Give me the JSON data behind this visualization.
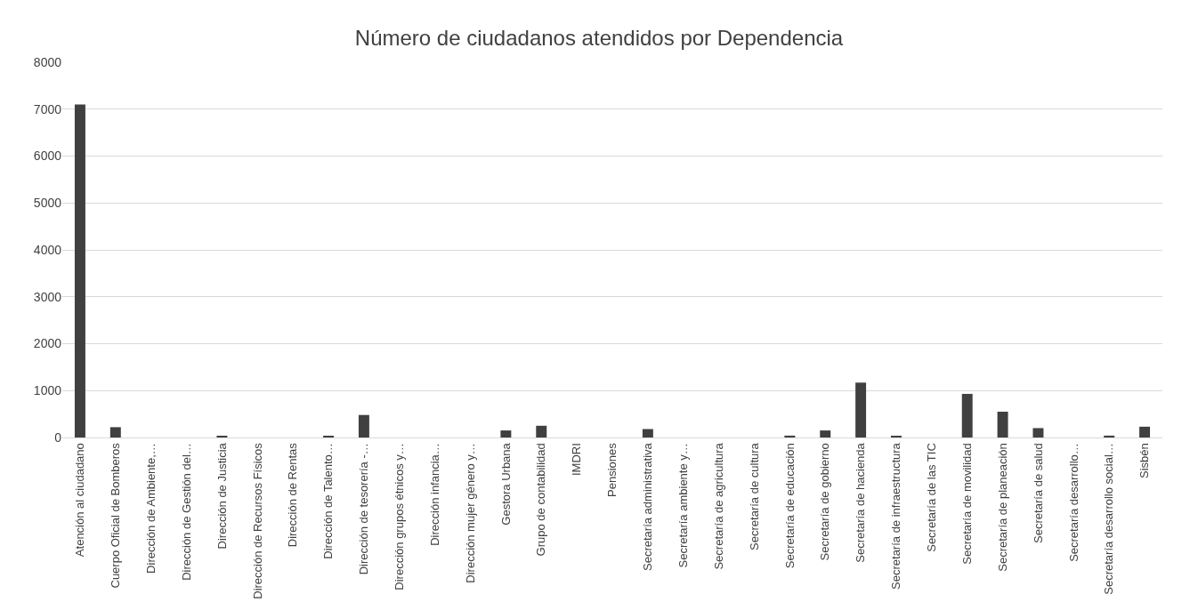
{
  "chart_data": {
    "type": "bar",
    "title": "Número de ciudadanos atendidos por Dependencia",
    "categories": [
      "Atención al ciudadano",
      "Cuerpo Oficial de Bomberos",
      "Dirección de Ambiente,…",
      "Dirección de Gestión del…",
      "Dirección de Justicia",
      "Dirección de Recursos Físicos",
      "Dirección de Rentas",
      "Dirección de Talento…",
      "Dirección de tesorería -…",
      "Dirección grupos étnicos y…",
      "Dirección infancia…",
      "Dirección mujer género y…",
      "Gestora Urbana",
      "Grupo de contabilidad",
      "IMDRI",
      "Pensiones",
      "Secretaría administrativa",
      "Secretaría ambiente y…",
      "Secretaría de agricultura",
      "Secretaría de cultura",
      "Secretaría de educación",
      "Secretaría de gobierno",
      "Secretaría de hacienda",
      "Secretaría de infraestructura",
      "Secretaría de las TIC",
      "Secretaría de movilidad",
      "Secretaría de planeación",
      "Secretaría de salud",
      "Secretaría desarrollo…",
      "Secretaría desarrollo social…",
      "Sisbén"
    ],
    "values": [
      7100,
      220,
      0,
      0,
      20,
      0,
      0,
      20,
      480,
      0,
      0,
      0,
      150,
      250,
      0,
      0,
      180,
      0,
      0,
      0,
      40,
      150,
      1170,
      30,
      0,
      930,
      550,
      200,
      0,
      40,
      230
    ],
    "color": "#404040",
    "ylim": [
      0,
      8000
    ],
    "yticks": [
      0,
      1000,
      2000,
      3000,
      4000,
      5000,
      6000,
      7000,
      8000
    ],
    "grid": "y"
  }
}
